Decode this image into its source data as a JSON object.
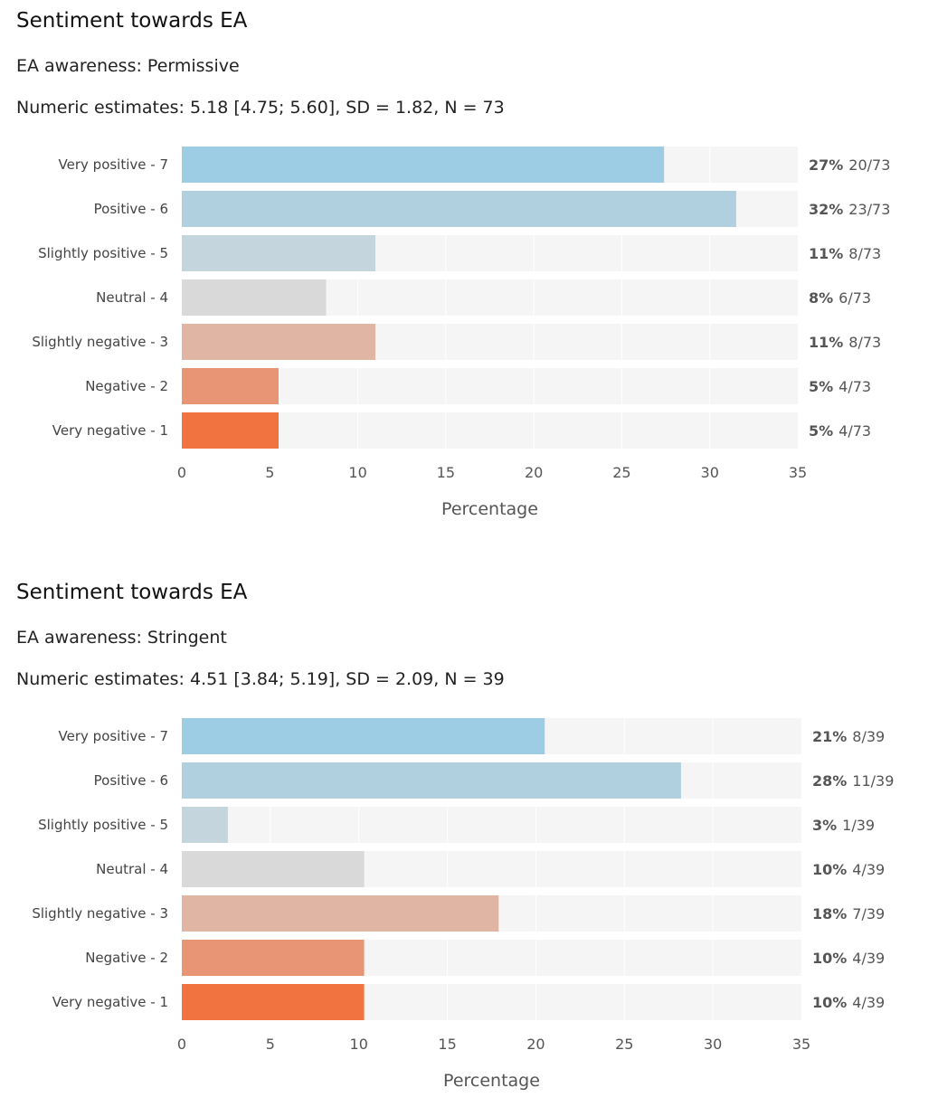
{
  "chart_data": [
    {
      "type": "bar",
      "orientation": "horizontal",
      "title": "Sentiment towards EA",
      "subtitle": "EA awareness: Permissive",
      "estimates": "Numeric estimates: 5.18 [4.75; 5.60], SD = 1.82, N = 73",
      "categories": [
        "Very positive - 7",
        "Positive - 6",
        "Slightly positive - 5",
        "Neutral - 4",
        "Slightly negative - 3",
        "Negative - 2",
        "Very negative - 1"
      ],
      "values": [
        27.4,
        31.5,
        11.0,
        8.2,
        11.0,
        5.5,
        5.5
      ],
      "pct_labels": [
        "27%",
        "32%",
        "11%",
        "8%",
        "11%",
        "5%",
        "5%"
      ],
      "count_labels": [
        "20/73",
        "23/73",
        "8/73",
        "6/73",
        "8/73",
        "4/73",
        "4/73"
      ],
      "colors": [
        "#9ccde4",
        "#b0d0e0",
        "#c5d5de",
        "#d9d9d9",
        "#e0b5a4",
        "#e89575",
        "#f07340"
      ],
      "xlabel": "Percentage",
      "xlim": [
        0,
        35
      ],
      "xticks": [
        0,
        5,
        10,
        15,
        20,
        25,
        30,
        35
      ],
      "grid": true
    },
    {
      "type": "bar",
      "orientation": "horizontal",
      "title": "Sentiment towards EA",
      "subtitle": "EA awareness: Stringent",
      "estimates": "Numeric estimates: 4.51 [3.84; 5.19], SD = 2.09, N = 39",
      "categories": [
        "Very positive - 7",
        "Positive - 6",
        "Slightly positive - 5",
        "Neutral - 4",
        "Slightly negative - 3",
        "Negative - 2",
        "Very negative - 1"
      ],
      "values": [
        20.5,
        28.2,
        2.6,
        10.3,
        17.9,
        10.3,
        10.3
      ],
      "pct_labels": [
        "21%",
        "28%",
        "3%",
        "10%",
        "18%",
        "10%",
        "10%"
      ],
      "count_labels": [
        "8/39",
        "11/39",
        "1/39",
        "4/39",
        "7/39",
        "4/39",
        "4/39"
      ],
      "colors": [
        "#9ccde4",
        "#b0d0e0",
        "#c5d5de",
        "#d9d9d9",
        "#e0b5a4",
        "#e89575",
        "#f07340"
      ],
      "xlabel": "Percentage",
      "xlim": [
        0,
        35
      ],
      "xticks": [
        0,
        5,
        10,
        15,
        20,
        25,
        30,
        35
      ],
      "grid": true
    }
  ]
}
